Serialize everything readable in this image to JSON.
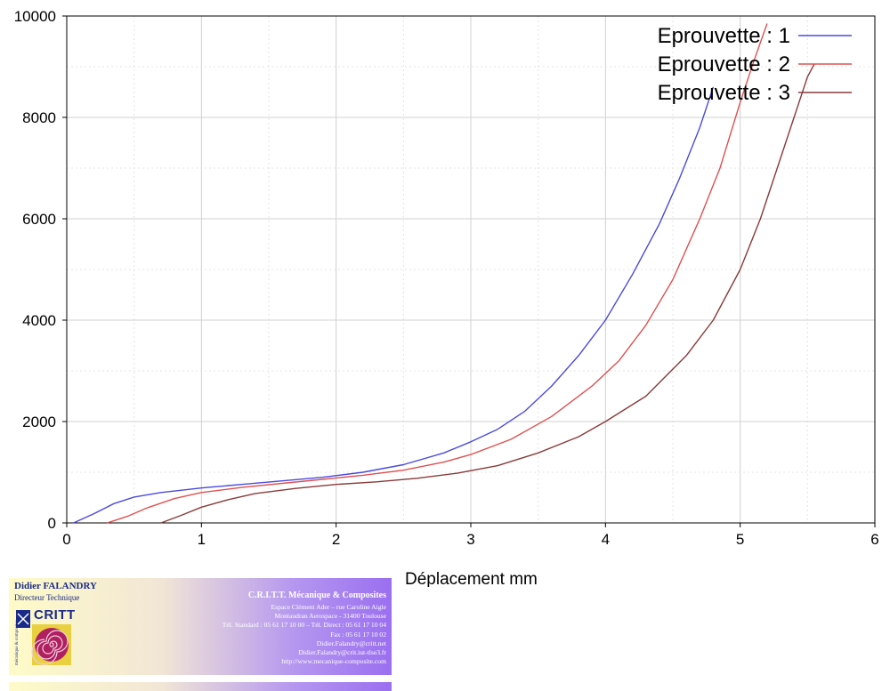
{
  "chart_data": {
    "type": "line",
    "title": "",
    "xlabel": "Déplacement mm",
    "ylabel": "",
    "xlim": [
      0,
      6
    ],
    "ylim": [
      0,
      10000
    ],
    "x_ticks": [
      "0",
      "1",
      "2",
      "3",
      "4",
      "5",
      "6"
    ],
    "y_ticks": [
      "0",
      "2000",
      "4000",
      "6000",
      "8000",
      "10000"
    ],
    "grid": true,
    "legend_position": "top-right",
    "series": [
      {
        "name": "Eprouvette : 1",
        "color": "#4a4adf",
        "points": [
          [
            0.05,
            0
          ],
          [
            0.2,
            180
          ],
          [
            0.35,
            380
          ],
          [
            0.5,
            510
          ],
          [
            0.7,
            600
          ],
          [
            1.0,
            690
          ],
          [
            1.3,
            760
          ],
          [
            1.6,
            830
          ],
          [
            1.9,
            900
          ],
          [
            2.2,
            1000
          ],
          [
            2.5,
            1150
          ],
          [
            2.8,
            1380
          ],
          [
            3.0,
            1600
          ],
          [
            3.2,
            1850
          ],
          [
            3.4,
            2200
          ],
          [
            3.6,
            2700
          ],
          [
            3.8,
            3300
          ],
          [
            4.0,
            4000
          ],
          [
            4.2,
            4900
          ],
          [
            4.4,
            5900
          ],
          [
            4.55,
            6800
          ],
          [
            4.7,
            7800
          ],
          [
            4.8,
            8600
          ]
        ]
      },
      {
        "name": "Eprouvette : 2",
        "color": "#e05050",
        "points": [
          [
            0.3,
            0
          ],
          [
            0.45,
            130
          ],
          [
            0.6,
            300
          ],
          [
            0.8,
            480
          ],
          [
            1.0,
            600
          ],
          [
            1.3,
            700
          ],
          [
            1.6,
            780
          ],
          [
            1.9,
            860
          ],
          [
            2.2,
            940
          ],
          [
            2.5,
            1040
          ],
          [
            2.8,
            1200
          ],
          [
            3.0,
            1350
          ],
          [
            3.3,
            1650
          ],
          [
            3.6,
            2100
          ],
          [
            3.9,
            2700
          ],
          [
            4.1,
            3200
          ],
          [
            4.3,
            3900
          ],
          [
            4.5,
            4800
          ],
          [
            4.7,
            6000
          ],
          [
            4.85,
            7000
          ],
          [
            5.0,
            8300
          ],
          [
            5.1,
            9100
          ],
          [
            5.2,
            9850
          ]
        ]
      },
      {
        "name": "Eprouvette : 3",
        "color": "#8a3a3a",
        "points": [
          [
            0.7,
            0
          ],
          [
            0.85,
            150
          ],
          [
            1.0,
            310
          ],
          [
            1.2,
            460
          ],
          [
            1.4,
            580
          ],
          [
            1.7,
            680
          ],
          [
            2.0,
            760
          ],
          [
            2.3,
            810
          ],
          [
            2.6,
            880
          ],
          [
            2.9,
            980
          ],
          [
            3.2,
            1130
          ],
          [
            3.5,
            1380
          ],
          [
            3.8,
            1700
          ],
          [
            4.0,
            2000
          ],
          [
            4.3,
            2500
          ],
          [
            4.6,
            3300
          ],
          [
            4.8,
            4000
          ],
          [
            5.0,
            5000
          ],
          [
            5.15,
            6000
          ],
          [
            5.3,
            7200
          ],
          [
            5.4,
            8000
          ],
          [
            5.5,
            8800
          ],
          [
            5.55,
            9050
          ]
        ]
      }
    ]
  },
  "business_card": {
    "name": "Didier FALANDRY",
    "role": "Directeur Technique",
    "logo_text": "CRITT",
    "logo_side_text": "mécanique & composites",
    "company": "C.R.I.T.T. Mécanique & Composites",
    "address_line1": "Espace Clément Ader – rue Caroline Aigle",
    "address_line2": "Montaudran Aerospace - 31400 Toulouse",
    "phone_line": "Tél. Standard : 05 61 17 10 00 – Tél. Direct : 05 61 17 10 04",
    "fax_line": "Fax : 05 61 17 10 02",
    "email1": "Didier.Falandry@critt.net",
    "email2": "Didier.Falandry@crit.iut-tlse3.fr",
    "website": "http://www.mecanique-composite.com"
  }
}
